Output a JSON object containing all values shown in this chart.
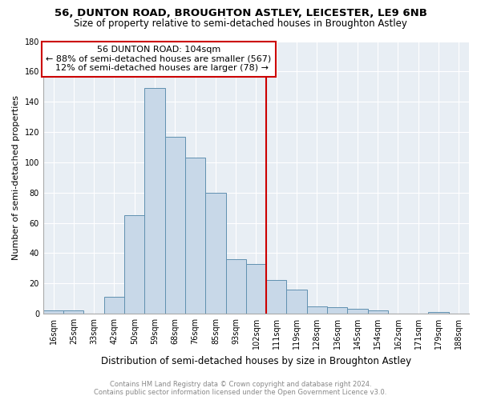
{
  "title": "56, DUNTON ROAD, BROUGHTON ASTLEY, LEICESTER, LE9 6NB",
  "subtitle": "Size of property relative to semi-detached houses in Broughton Astley",
  "xlabel": "Distribution of semi-detached houses by size in Broughton Astley",
  "ylabel": "Number of semi-detached properties",
  "footer1": "Contains HM Land Registry data © Crown copyright and database right 2024.",
  "footer2": "Contains public sector information licensed under the Open Government Licence v3.0.",
  "categories": [
    "16sqm",
    "25sqm",
    "33sqm",
    "42sqm",
    "50sqm",
    "59sqm",
    "68sqm",
    "76sqm",
    "85sqm",
    "93sqm",
    "102sqm",
    "111sqm",
    "119sqm",
    "128sqm",
    "136sqm",
    "145sqm",
    "154sqm",
    "162sqm",
    "171sqm",
    "179sqm",
    "188sqm"
  ],
  "values": [
    2,
    2,
    0,
    11,
    65,
    149,
    117,
    103,
    80,
    36,
    33,
    22,
    16,
    5,
    4,
    3,
    2,
    0,
    0,
    1,
    0
  ],
  "bar_color": "#c8d8e8",
  "bar_edge_color": "#6090b0",
  "vline_index": 10.5,
  "property_label": "56 DUNTON ROAD: 104sqm",
  "pct_smaller": 88,
  "count_smaller": 567,
  "pct_larger": 12,
  "count_larger": 78,
  "vline_color": "#cc0000",
  "ylim": [
    0,
    180
  ],
  "yticks": [
    0,
    20,
    40,
    60,
    80,
    100,
    120,
    140,
    160,
    180
  ],
  "bg_color": "#e8eef4",
  "grid_color": "#ffffff",
  "title_fontsize": 9.5,
  "subtitle_fontsize": 8.5,
  "tick_fontsize": 7,
  "ylabel_fontsize": 8,
  "xlabel_fontsize": 8.5,
  "footer_fontsize": 6,
  "annot_fontsize": 8
}
